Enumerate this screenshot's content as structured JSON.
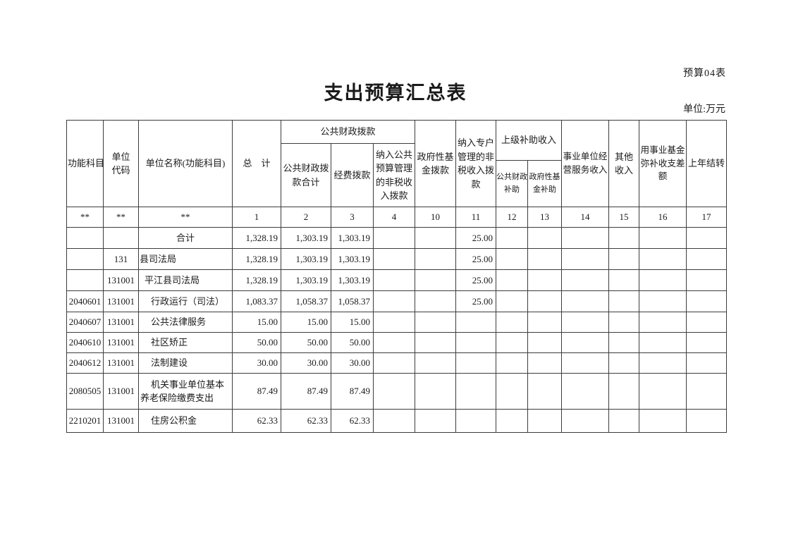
{
  "page": {
    "form_label": "预算04表",
    "title": "支出预算汇总表",
    "unit_label": "单位:万元"
  },
  "table": {
    "headers": {
      "function_subject": "功能科目",
      "unit_code": "单位代码",
      "unit_name": "单位名称(功能科目)",
      "total": "总　计",
      "public_finance_group": "公共财政拨款",
      "public_finance_subtotal": "公共财政拨款合计",
      "expense_appropriation": "经费拨款",
      "nontax_in_public_budget": "纳入公共预算管理的非税收入拨款",
      "gov_fund_appropriation": "政府性基金拨款",
      "special_account_nontax": "纳入专户管理的非税收入拨款",
      "superior_subsidy_group": "上级补助收入",
      "superior_public_finance": "公共财政补助",
      "superior_gov_fund": "政府性基金补助",
      "operating_service_income": "事业单位经营服务收入",
      "other_income": "其他收入",
      "fund_balance_offset": "用事业基金弥补收支差额",
      "prior_year_carryover": "上年结转"
    },
    "index_row": [
      "**",
      "**",
      "**",
      "1",
      "2",
      "3",
      "4",
      "10",
      "11",
      "12",
      "13",
      "14",
      "15",
      "16",
      "17"
    ],
    "rows": [
      {
        "name_style": "center",
        "cells": [
          "",
          "",
          "合计",
          "1,328.19",
          "1,303.19",
          "1,303.19",
          "",
          "",
          "25.00",
          "",
          "",
          "",
          "",
          "",
          ""
        ]
      },
      {
        "name_style": "flush",
        "cells": [
          "",
          "131",
          "县司法局",
          "1,328.19",
          "1,303.19",
          "1,303.19",
          "",
          "",
          "25.00",
          "",
          "",
          "",
          "",
          "",
          ""
        ]
      },
      {
        "name_style": "indent1",
        "cells": [
          "",
          "131001",
          "平江县司法局",
          "1,328.19",
          "1,303.19",
          "1,303.19",
          "",
          "",
          "25.00",
          "",
          "",
          "",
          "",
          "",
          ""
        ]
      },
      {
        "name_style": "indent2",
        "cells": [
          "2040601",
          "131001",
          "行政运行（司法）",
          "1,083.37",
          "1,058.37",
          "1,058.37",
          "",
          "",
          "25.00",
          "",
          "",
          "",
          "",
          "",
          ""
        ]
      },
      {
        "name_style": "indent2",
        "cells": [
          "2040607",
          "131001",
          "公共法律服务",
          "15.00",
          "15.00",
          "15.00",
          "",
          "",
          "",
          "",
          "",
          "",
          "",
          "",
          ""
        ]
      },
      {
        "name_style": "indent2",
        "cells": [
          "2040610",
          "131001",
          "社区矫正",
          "50.00",
          "50.00",
          "50.00",
          "",
          "",
          "",
          "",
          "",
          "",
          "",
          "",
          ""
        ]
      },
      {
        "name_style": "indent2",
        "cells": [
          "2040612",
          "131001",
          "法制建设",
          "30.00",
          "30.00",
          "30.00",
          "",
          "",
          "",
          "",
          "",
          "",
          "",
          "",
          ""
        ]
      },
      {
        "name_style": "indent2",
        "cells": [
          "2080505",
          "131001",
          "机关事业单位基本养老保险缴费支出",
          "87.49",
          "87.49",
          "87.49",
          "",
          "",
          "",
          "",
          "",
          "",
          "",
          "",
          ""
        ]
      },
      {
        "name_style": "indent2",
        "cells": [
          "2210201",
          "131001",
          "住房公积金",
          "62.33",
          "62.33",
          "62.33",
          "",
          "",
          "",
          "",
          "",
          "",
          "",
          "",
          ""
        ]
      }
    ]
  }
}
